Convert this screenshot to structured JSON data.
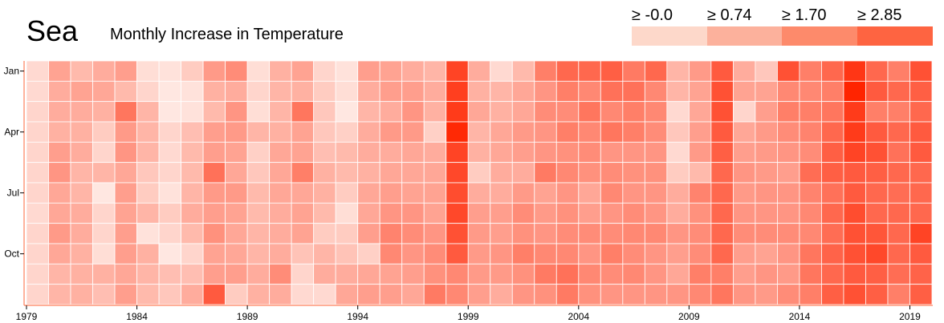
{
  "chart_data": {
    "type": "heatmap",
    "title": "Sea",
    "subtitle": "Monthly Increase in Temperature",
    "legend": [
      {
        "label": "≥ -0.0",
        "color": "#fdd8ca"
      },
      {
        "label": "≥ 0.74",
        "color": "#fcb19c"
      },
      {
        "label": "≥ 1.70",
        "color": "#fd8a6b"
      },
      {
        "label": "≥ 2.85",
        "color": "#fe6441"
      }
    ],
    "x_tick_labels": [
      "1979",
      "1984",
      "1989",
      "1994",
      "1999",
      "2004",
      "2009",
      "2014",
      "2019"
    ],
    "y_tick_labels": [
      "Jan",
      "Apr",
      "Jul",
      "Oct"
    ],
    "years": [
      1979,
      1980,
      1981,
      1982,
      1983,
      1984,
      1985,
      1986,
      1987,
      1988,
      1989,
      1990,
      1991,
      1992,
      1993,
      1994,
      1995,
      1996,
      1997,
      1998,
      1999,
      2000,
      2001,
      2002,
      2003,
      2004,
      2005,
      2006,
      2007,
      2008,
      2009,
      2010,
      2011,
      2012,
      2013,
      2014,
      2015,
      2016,
      2017,
      2018,
      2019
    ],
    "months": [
      "Jan",
      "Feb",
      "Mar",
      "Apr",
      "May",
      "Jun",
      "Jul",
      "Aug",
      "Sep",
      "Oct",
      "Nov",
      "Dec"
    ],
    "value_range": [
      0,
      4.5
    ],
    "values": [
      [
        0.5,
        1.7,
        1.2,
        1.5,
        1.8,
        0.4,
        0.3,
        0.8,
        1.9,
        2.2,
        0.4,
        1.4,
        1.7,
        0.6,
        0.3,
        1.8,
        1.7,
        1.5,
        1.3,
        3.8,
        1.5,
        0.5,
        1.2,
        2.5,
        3.0,
        3.0,
        3.2,
        2.6,
        3.0,
        1.3,
        1.9,
        3.3,
        1.5,
        0.9,
        3.5,
        2.5,
        3.0,
        4.1,
        3.0,
        2.5,
        3.5
      ],
      [
        0.5,
        1.5,
        1.7,
        1.6,
        1.2,
        0.6,
        0.2,
        0.3,
        1.4,
        1.5,
        0.6,
        1.3,
        1.4,
        0.8,
        0.4,
        1.5,
        1.8,
        1.8,
        1.5,
        3.9,
        1.4,
        1.3,
        1.6,
        2.0,
        2.5,
        2.3,
        2.8,
        2.8,
        2.3,
        1.3,
        1.7,
        3.5,
        1.7,
        1.7,
        2.3,
        2.3,
        2.5,
        4.5,
        3.3,
        3.0,
        3.2
      ],
      [
        0.6,
        1.5,
        1.5,
        1.4,
        2.7,
        1.3,
        0.2,
        0.3,
        1.2,
        2.0,
        0.4,
        1.3,
        2.7,
        0.9,
        0.2,
        1.3,
        1.5,
        2.0,
        1.4,
        4.0,
        1.6,
        1.4,
        1.6,
        2.2,
        2.2,
        2.7,
        2.3,
        2.5,
        2.3,
        0.5,
        1.6,
        3.5,
        0.6,
        1.8,
        2.5,
        2.5,
        2.7,
        4.0,
        2.5,
        2.5,
        3.0
      ],
      [
        0.6,
        1.4,
        1.4,
        0.8,
        1.9,
        1.3,
        0.6,
        1.1,
        1.8,
        1.9,
        1.3,
        1.4,
        1.7,
        0.9,
        0.7,
        1.5,
        1.9,
        1.9,
        0.7,
        4.4,
        1.3,
        1.6,
        1.9,
        2.0,
        2.5,
        2.3,
        2.7,
        2.5,
        2.2,
        0.9,
        1.8,
        3.3,
        1.6,
        1.9,
        2.2,
        2.4,
        3.0,
        4.0,
        3.3,
        3.0,
        3.3
      ],
      [
        0.6,
        1.8,
        1.5,
        0.6,
        2.0,
        1.3,
        0.5,
        1.2,
        1.8,
        1.7,
        0.7,
        1.6,
        1.7,
        1.1,
        1.2,
        1.5,
        1.5,
        1.6,
        1.5,
        3.8,
        1.4,
        1.6,
        1.8,
        2.0,
        2.1,
        2.2,
        2.0,
        2.0,
        2.0,
        0.5,
        1.9,
        3.2,
        1.8,
        1.9,
        2.0,
        2.2,
        3.2,
        3.8,
        3.5,
        2.8,
        3.3
      ],
      [
        0.6,
        2.0,
        1.3,
        1.3,
        1.6,
        0.9,
        0.6,
        1.2,
        2.8,
        1.6,
        0.9,
        1.6,
        2.5,
        1.4,
        1.2,
        1.4,
        1.6,
        1.6,
        1.6,
        3.7,
        0.8,
        1.5,
        1.5,
        2.6,
        2.3,
        2.1,
        2.2,
        2.1,
        2.1,
        0.8,
        1.2,
        3.0,
        2.0,
        1.9,
        1.8,
        2.9,
        3.2,
        3.3,
        3.2,
        3.0,
        3.0
      ],
      [
        0.6,
        1.6,
        1.3,
        0.2,
        1.8,
        0.8,
        0.3,
        1.3,
        1.9,
        1.9,
        1.2,
        1.6,
        1.6,
        1.4,
        0.8,
        1.6,
        1.8,
        1.7,
        1.7,
        3.6,
        1.5,
        1.5,
        1.9,
        1.7,
        2.0,
        1.6,
        2.3,
        2.0,
        2.0,
        1.5,
        2.4,
        3.0,
        1.9,
        2.0,
        2.0,
        2.4,
        2.8,
        3.3,
        3.0,
        2.9,
        3.0
      ],
      [
        0.5,
        1.6,
        1.5,
        0.6,
        1.7,
        1.3,
        0.8,
        1.5,
        1.8,
        1.7,
        1.2,
        1.5,
        1.7,
        1.2,
        0.4,
        1.6,
        2.0,
        2.0,
        1.7,
        3.7,
        1.8,
        1.8,
        2.2,
        1.9,
        2.1,
        1.8,
        2.0,
        2.2,
        2.0,
        1.5,
        2.1,
        3.0,
        2.0,
        2.0,
        2.0,
        2.3,
        3.0,
        3.6,
        3.0,
        3.0,
        3.0
      ],
      [
        0.6,
        1.9,
        1.5,
        0.6,
        1.8,
        0.3,
        0.6,
        1.2,
        2.1,
        1.6,
        1.3,
        1.5,
        1.7,
        0.8,
        0.8,
        1.8,
        2.4,
        2.2,
        2.0,
        3.5,
        1.9,
        1.8,
        2.1,
        2.0,
        2.2,
        2.2,
        2.2,
        2.3,
        2.3,
        2.0,
        2.2,
        3.0,
        2.2,
        2.2,
        2.2,
        2.3,
        2.9,
        3.5,
        3.4,
        3.0,
        3.8
      ],
      [
        0.6,
        1.6,
        1.4,
        0.4,
        1.8,
        1.4,
        0.2,
        0.6,
        1.7,
        1.6,
        1.3,
        1.5,
        1.0,
        1.3,
        1.0,
        0.7,
        2.3,
        2.0,
        2.2,
        3.3,
        1.9,
        2.0,
        2.5,
        2.3,
        2.3,
        2.0,
        2.5,
        2.2,
        2.0,
        1.8,
        2.2,
        3.0,
        1.8,
        1.7,
        2.0,
        2.7,
        3.1,
        3.5,
        3.7,
        3.0,
        3.3
      ],
      [
        0.6,
        1.3,
        1.4,
        1.4,
        1.6,
        1.3,
        1.1,
        1.1,
        1.8,
        1.8,
        1.5,
        2.2,
        0.6,
        1.5,
        1.5,
        1.6,
        1.7,
        1.8,
        2.1,
        2.3,
        1.9,
        1.9,
        2.1,
        2.6,
        2.8,
        2.3,
        2.2,
        2.3,
        2.0,
        1.6,
        2.5,
        2.5,
        1.8,
        2.0,
        1.9,
        2.7,
        3.0,
        3.3,
        3.2,
        2.9,
        3.1
      ],
      [
        0.6,
        1.3,
        1.4,
        1.1,
        1.8,
        1.2,
        0.9,
        1.5,
        3.3,
        0.8,
        1.4,
        1.5,
        0.5,
        0.5,
        1.6,
        1.8,
        1.8,
        1.6,
        2.6,
        2.3,
        1.8,
        1.5,
        2.0,
        2.1,
        2.6,
        2.1,
        2.0,
        2.0,
        2.0,
        2.0,
        2.3,
        2.7,
        2.0,
        1.9,
        2.2,
        2.5,
        3.2,
        3.5,
        3.2,
        2.5,
        3.2
      ]
    ]
  }
}
